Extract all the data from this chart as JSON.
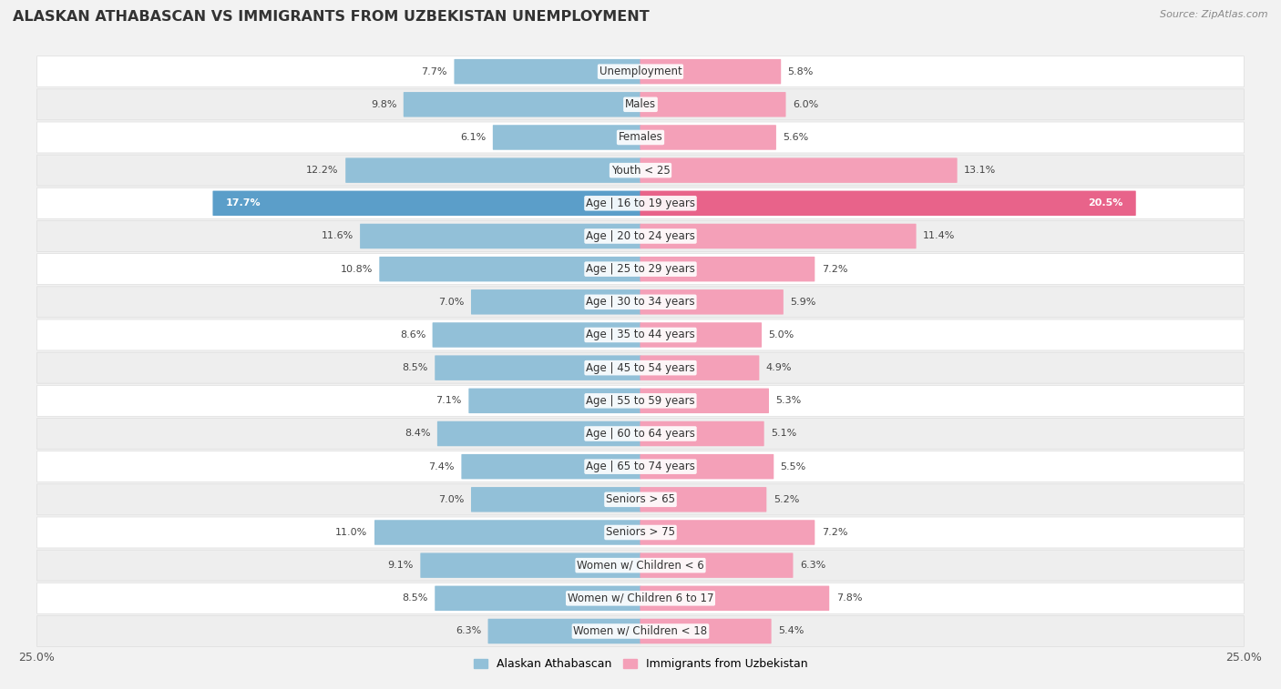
{
  "title": "ALASKAN ATHABASCAN VS IMMIGRANTS FROM UZBEKISTAN UNEMPLOYMENT",
  "source": "Source: ZipAtlas.com",
  "categories": [
    "Unemployment",
    "Males",
    "Females",
    "Youth < 25",
    "Age | 16 to 19 years",
    "Age | 20 to 24 years",
    "Age | 25 to 29 years",
    "Age | 30 to 34 years",
    "Age | 35 to 44 years",
    "Age | 45 to 54 years",
    "Age | 55 to 59 years",
    "Age | 60 to 64 years",
    "Age | 65 to 74 years",
    "Seniors > 65",
    "Seniors > 75",
    "Women w/ Children < 6",
    "Women w/ Children 6 to 17",
    "Women w/ Children < 18"
  ],
  "left_values": [
    7.7,
    9.8,
    6.1,
    12.2,
    17.7,
    11.6,
    10.8,
    7.0,
    8.6,
    8.5,
    7.1,
    8.4,
    7.4,
    7.0,
    11.0,
    9.1,
    8.5,
    6.3
  ],
  "right_values": [
    5.8,
    6.0,
    5.6,
    13.1,
    20.5,
    11.4,
    7.2,
    5.9,
    5.0,
    4.9,
    5.3,
    5.1,
    5.5,
    5.2,
    7.2,
    6.3,
    7.8,
    5.4
  ],
  "left_color": "#92c0d8",
  "right_color": "#f4a0b8",
  "left_color_highlight": "#5b9ec9",
  "right_color_highlight": "#e8638a",
  "left_label": "Alaskan Athabascan",
  "right_label": "Immigrants from Uzbekistan",
  "axis_max": 25.0,
  "row_bg_light": "#ffffff",
  "row_bg_dark": "#eeeeee",
  "row_border": "#dddddd",
  "title_fontsize": 11.5,
  "label_fontsize": 8.5,
  "value_fontsize": 8.0
}
